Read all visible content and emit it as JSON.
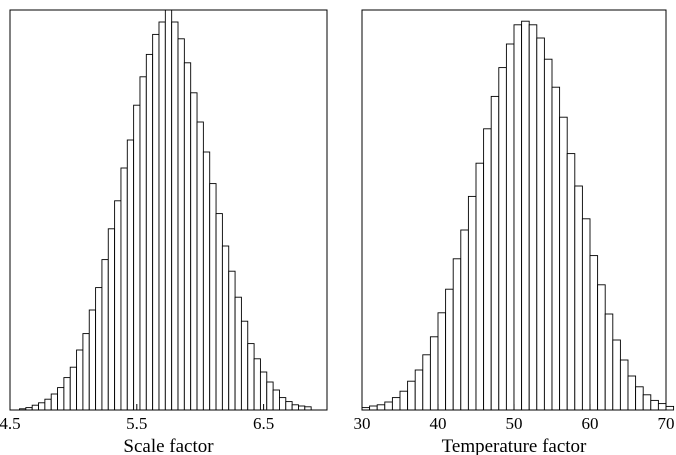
{
  "chart_data": [
    {
      "type": "bar",
      "subtype": "histogram",
      "title": "",
      "xlabel": "Scale factor",
      "ylabel": "",
      "xlim": [
        4.5,
        7.0
      ],
      "xticks": [
        4.5,
        5.5,
        6.5
      ],
      "xtick_labels": [
        "4.5",
        "5.5",
        "6.5"
      ],
      "bin_start": 4.575,
      "bin_width": 0.05,
      "ylim": [
        0,
        1.0
      ],
      "y_ticks_shown": false,
      "grid": false,
      "values": [
        0.003,
        0.006,
        0.012,
        0.018,
        0.027,
        0.04,
        0.056,
        0.081,
        0.107,
        0.15,
        0.191,
        0.25,
        0.306,
        0.376,
        0.453,
        0.523,
        0.605,
        0.675,
        0.762,
        0.833,
        0.889,
        0.939,
        0.97,
        1.0,
        0.97,
        0.928,
        0.868,
        0.793,
        0.72,
        0.645,
        0.566,
        0.491,
        0.41,
        0.347,
        0.282,
        0.222,
        0.166,
        0.128,
        0.095,
        0.07,
        0.05,
        0.031,
        0.021,
        0.013,
        0.01,
        0.008
      ]
    },
    {
      "type": "bar",
      "subtype": "histogram",
      "title": "",
      "xlabel": "Temperature factor",
      "ylabel": "",
      "xlim": [
        30,
        70
      ],
      "xticks": [
        30,
        40,
        50,
        60,
        70
      ],
      "xtick_labels": [
        "30",
        "40",
        "50",
        "60",
        "70"
      ],
      "bin_start": 30,
      "bin_width": 1.0,
      "ylim": [
        0,
        1.0
      ],
      "y_ticks_shown": false,
      "grid": false,
      "values": [
        0.006,
        0.01,
        0.013,
        0.02,
        0.031,
        0.047,
        0.072,
        0.1,
        0.138,
        0.183,
        0.243,
        0.302,
        0.378,
        0.45,
        0.534,
        0.617,
        0.703,
        0.784,
        0.856,
        0.915,
        0.963,
        0.972,
        0.963,
        0.93,
        0.877,
        0.807,
        0.732,
        0.641,
        0.56,
        0.478,
        0.386,
        0.313,
        0.24,
        0.175,
        0.125,
        0.085,
        0.058,
        0.038,
        0.024,
        0.016,
        0.009
      ]
    }
  ]
}
